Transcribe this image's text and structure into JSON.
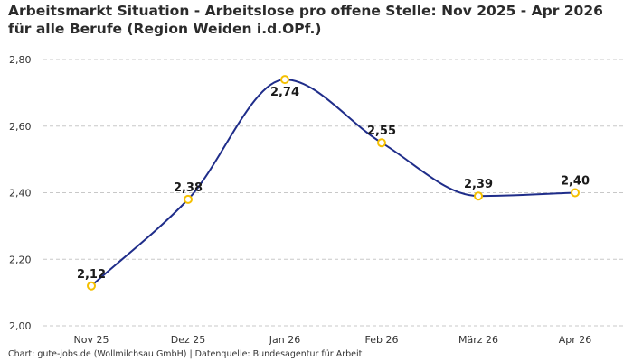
{
  "chart_data": {
    "type": "line",
    "title": "Arbeitsmarkt Situation - Arbeitslose pro offene Stelle: Nov 2025 - Apr 2026 für alle Berufe (Region Weiden i.d.OPf.)",
    "categories": [
      "Nov 25",
      "Dez 25",
      "Jan 26",
      "Feb 26",
      "März 26",
      "Apr 26"
    ],
    "series": [
      {
        "values": [
          2.12,
          2.38,
          2.74,
          2.55,
          2.39,
          2.4
        ]
      }
    ],
    "data_labels": [
      "2,12",
      "2,38",
      "2,74",
      "2,55",
      "2,39",
      "2,40"
    ],
    "y_ticks": [
      2.0,
      2.2,
      2.4,
      2.6,
      2.8
    ],
    "y_tick_labels": [
      "2,00",
      "2,20",
      "2,40",
      "2,60",
      "2,80"
    ],
    "ylim": [
      2.0,
      2.8
    ],
    "grid": "horizontal dashed",
    "line_style": "smooth",
    "colors": {
      "line": "#1f2d8a",
      "marker": "#f5c000",
      "grid": "#c8c8c8"
    }
  },
  "footer": {
    "source": "Chart: gute-jobs.de (Wollmilchsau GmbH) | Datenquelle: Bundesagentur für Arbeit"
  }
}
